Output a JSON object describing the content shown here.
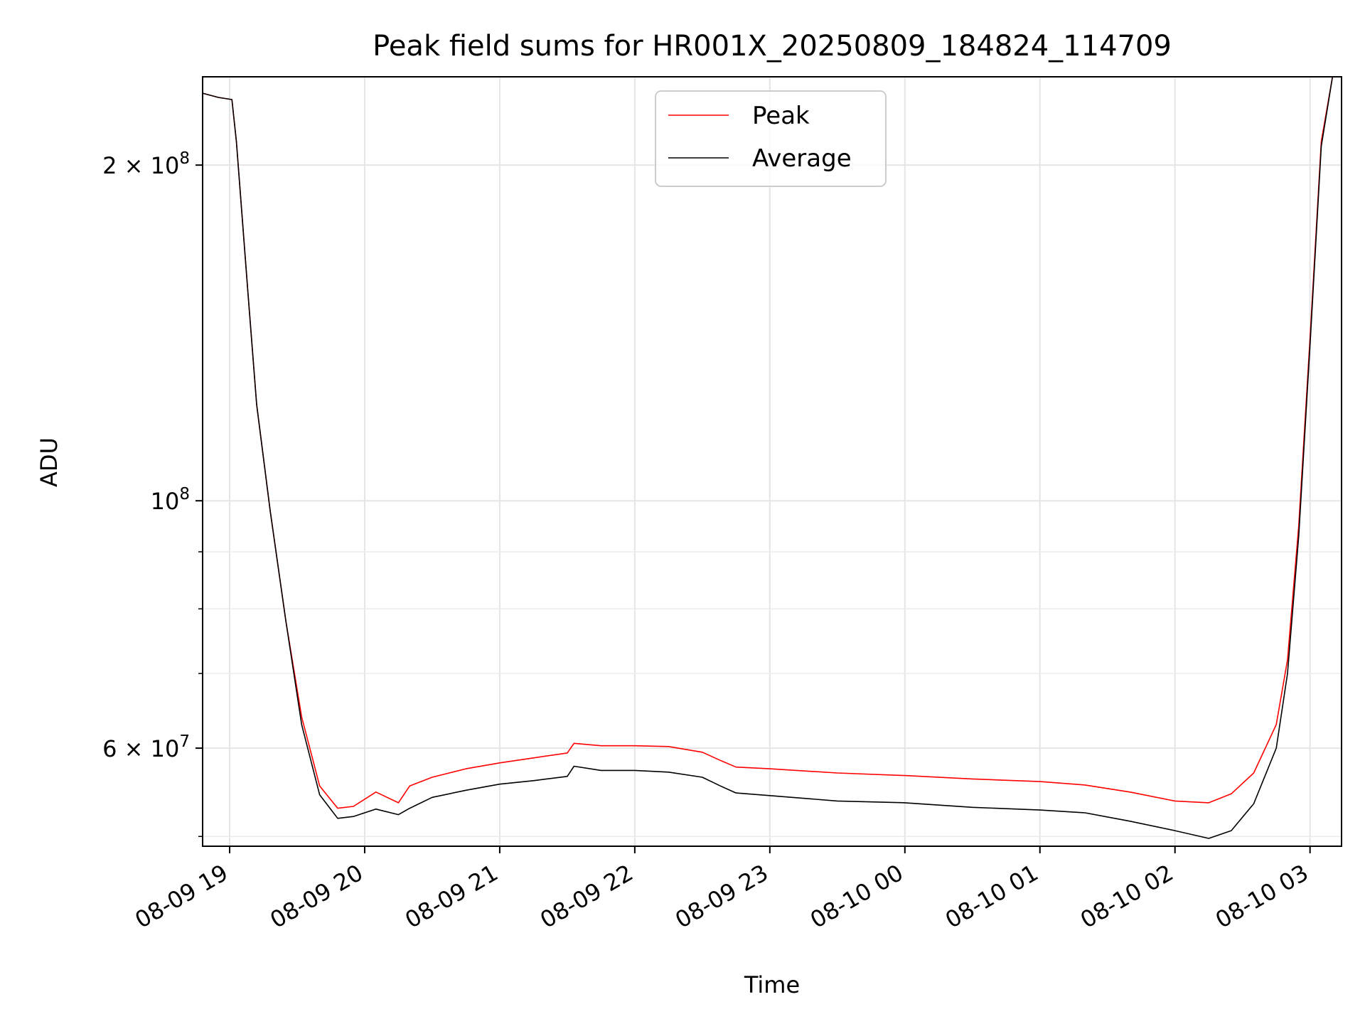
{
  "chart_data": {
    "type": "line",
    "title": "Peak field sums for HR001X_20250809_184824_114709",
    "xlabel": "Time",
    "ylabel": "ADU",
    "yscale": "log",
    "xlim": [
      "2025-08-09 18:48",
      "2025-08-10 03:14"
    ],
    "ylim": [
      49000000,
      240000000
    ],
    "grid": true,
    "legend_position": "top-center",
    "x_ticks": [
      "08-09 19",
      "08-09 20",
      "08-09 21",
      "08-09 22",
      "08-09 23",
      "08-10 00",
      "08-10 01",
      "08-10 02",
      "08-10 03"
    ],
    "x_tick_times": [
      "2025-08-09 19:00",
      "2025-08-09 20:00",
      "2025-08-09 21:00",
      "2025-08-09 22:00",
      "2025-08-09 23:00",
      "2025-08-10 00:00",
      "2025-08-10 01:00",
      "2025-08-10 02:00",
      "2025-08-10 03:00"
    ],
    "y_ticks_major": [
      {
        "value": 100000000,
        "base": "10",
        "exp": "8",
        "mult": ""
      },
      {
        "value": 200000000,
        "base": "10",
        "exp": "8",
        "mult": "2 × "
      },
      {
        "value": 60000000,
        "base": "10",
        "exp": "7",
        "mult": "6 × "
      }
    ],
    "y_ticks_minor": [
      50000000,
      70000000,
      80000000,
      90000000
    ],
    "series": [
      {
        "name": "Peak",
        "color": "#ff0000",
        "x": [
          "2025-08-09 18:48",
          "2025-08-09 18:55",
          "2025-08-09 19:01",
          "2025-08-09 19:03",
          "2025-08-09 19:08",
          "2025-08-09 19:12",
          "2025-08-09 19:18",
          "2025-08-09 19:25",
          "2025-08-09 19:32",
          "2025-08-09 19:40",
          "2025-08-09 19:48",
          "2025-08-09 19:55",
          "2025-08-09 20:05",
          "2025-08-09 20:15",
          "2025-08-09 20:20",
          "2025-08-09 20:30",
          "2025-08-09 20:45",
          "2025-08-09 21:00",
          "2025-08-09 21:15",
          "2025-08-09 21:30",
          "2025-08-09 21:33",
          "2025-08-09 21:45",
          "2025-08-09 22:00",
          "2025-08-09 22:15",
          "2025-08-09 22:30",
          "2025-08-09 22:38",
          "2025-08-09 22:45",
          "2025-08-09 23:00",
          "2025-08-09 23:30",
          "2025-08-10 00:00",
          "2025-08-10 00:30",
          "2025-08-10 01:00",
          "2025-08-10 01:20",
          "2025-08-10 01:40",
          "2025-08-10 02:00",
          "2025-08-10 02:15",
          "2025-08-10 02:25",
          "2025-08-10 02:35",
          "2025-08-10 02:45",
          "2025-08-10 02:50",
          "2025-08-10 02:55",
          "2025-08-10 03:00",
          "2025-08-10 03:05",
          "2025-08-10 03:10",
          "2025-08-10 03:14"
        ],
        "y": [
          232000000,
          230000000,
          229000000,
          210000000,
          155000000,
          122000000,
          98000000,
          78000000,
          64000000,
          55500000,
          53000000,
          53200000,
          54800000,
          53600000,
          55500000,
          56500000,
          57500000,
          58200000,
          58800000,
          59400000,
          60600000,
          60300000,
          60300000,
          60200000,
          59500000,
          58500000,
          57700000,
          57500000,
          57000000,
          56700000,
          56300000,
          56000000,
          55600000,
          54800000,
          53800000,
          53600000,
          54600000,
          57000000,
          63000000,
          72000000,
          95000000,
          140000000,
          210000000,
          240000000,
          240000000
        ]
      },
      {
        "name": "Average",
        "color": "#000000",
        "x": [
          "2025-08-09 18:48",
          "2025-08-09 18:55",
          "2025-08-09 19:01",
          "2025-08-09 19:03",
          "2025-08-09 19:08",
          "2025-08-09 19:12",
          "2025-08-09 19:18",
          "2025-08-09 19:25",
          "2025-08-09 19:32",
          "2025-08-09 19:40",
          "2025-08-09 19:48",
          "2025-08-09 19:55",
          "2025-08-09 20:05",
          "2025-08-09 20:15",
          "2025-08-09 20:20",
          "2025-08-09 20:30",
          "2025-08-09 20:45",
          "2025-08-09 21:00",
          "2025-08-09 21:15",
          "2025-08-09 21:30",
          "2025-08-09 21:33",
          "2025-08-09 21:45",
          "2025-08-09 22:00",
          "2025-08-09 22:15",
          "2025-08-09 22:30",
          "2025-08-09 22:38",
          "2025-08-09 22:45",
          "2025-08-09 23:00",
          "2025-08-09 23:30",
          "2025-08-10 00:00",
          "2025-08-10 00:30",
          "2025-08-10 01:00",
          "2025-08-10 01:20",
          "2025-08-10 01:40",
          "2025-08-10 02:00",
          "2025-08-10 02:15",
          "2025-08-10 02:25",
          "2025-08-10 02:35",
          "2025-08-10 02:45",
          "2025-08-10 02:50",
          "2025-08-10 02:55",
          "2025-08-10 03:00",
          "2025-08-10 03:05",
          "2025-08-10 03:10",
          "2025-08-10 03:14"
        ],
        "y": [
          232000000,
          230000000,
          229000000,
          210000000,
          155000000,
          122000000,
          98000000,
          78000000,
          63000000,
          54500000,
          51900000,
          52100000,
          52900000,
          52300000,
          53000000,
          54200000,
          55000000,
          55700000,
          56100000,
          56600000,
          57800000,
          57300000,
          57300000,
          57100000,
          56500000,
          55500000,
          54700000,
          54400000,
          53800000,
          53600000,
          53100000,
          52800000,
          52500000,
          51600000,
          50600000,
          49800000,
          50600000,
          53500000,
          60000000,
          70000000,
          93000000,
          138000000,
          208000000,
          240000000,
          240000000
        ]
      }
    ]
  }
}
